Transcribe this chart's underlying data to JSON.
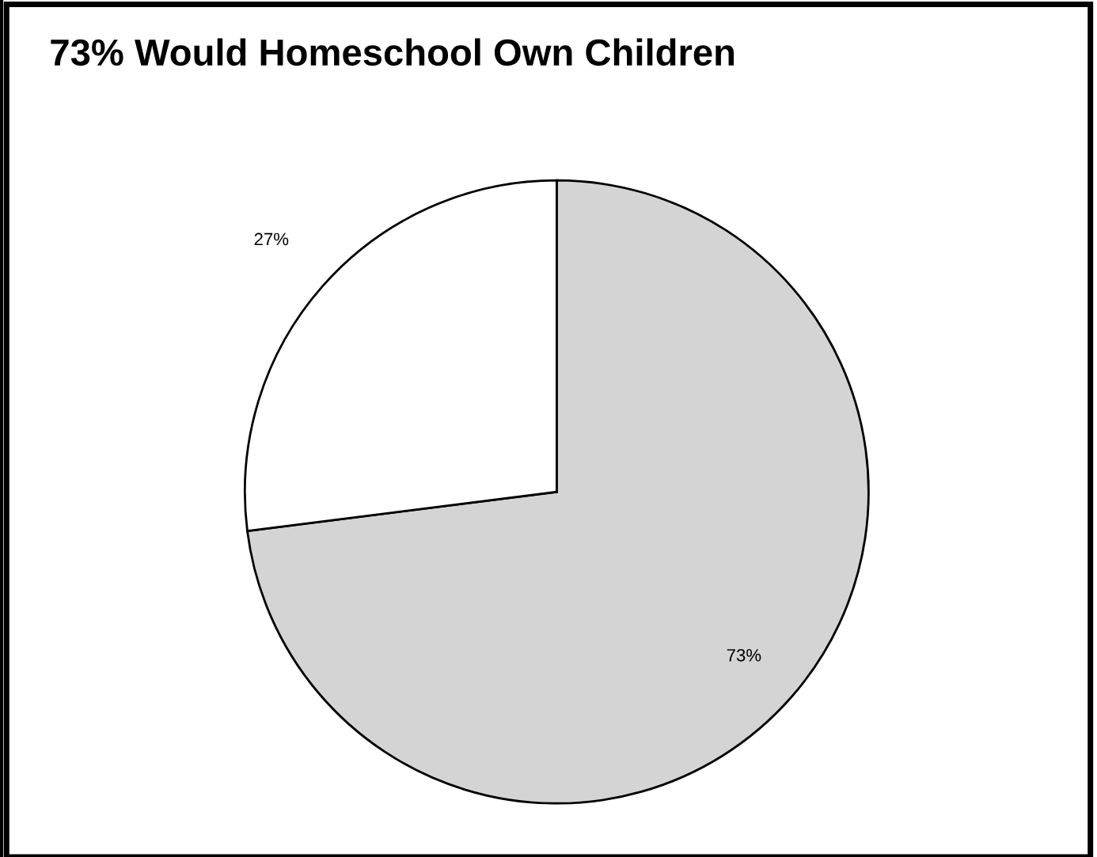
{
  "chart_data": {
    "type": "pie",
    "title": "73% Would Homeschool Own Children",
    "categories": [
      null,
      null
    ],
    "values": [
      73,
      27
    ],
    "value_labels": [
      "73%",
      "27%"
    ],
    "colors": [
      "#d4d4d4",
      "#ffffff"
    ]
  }
}
